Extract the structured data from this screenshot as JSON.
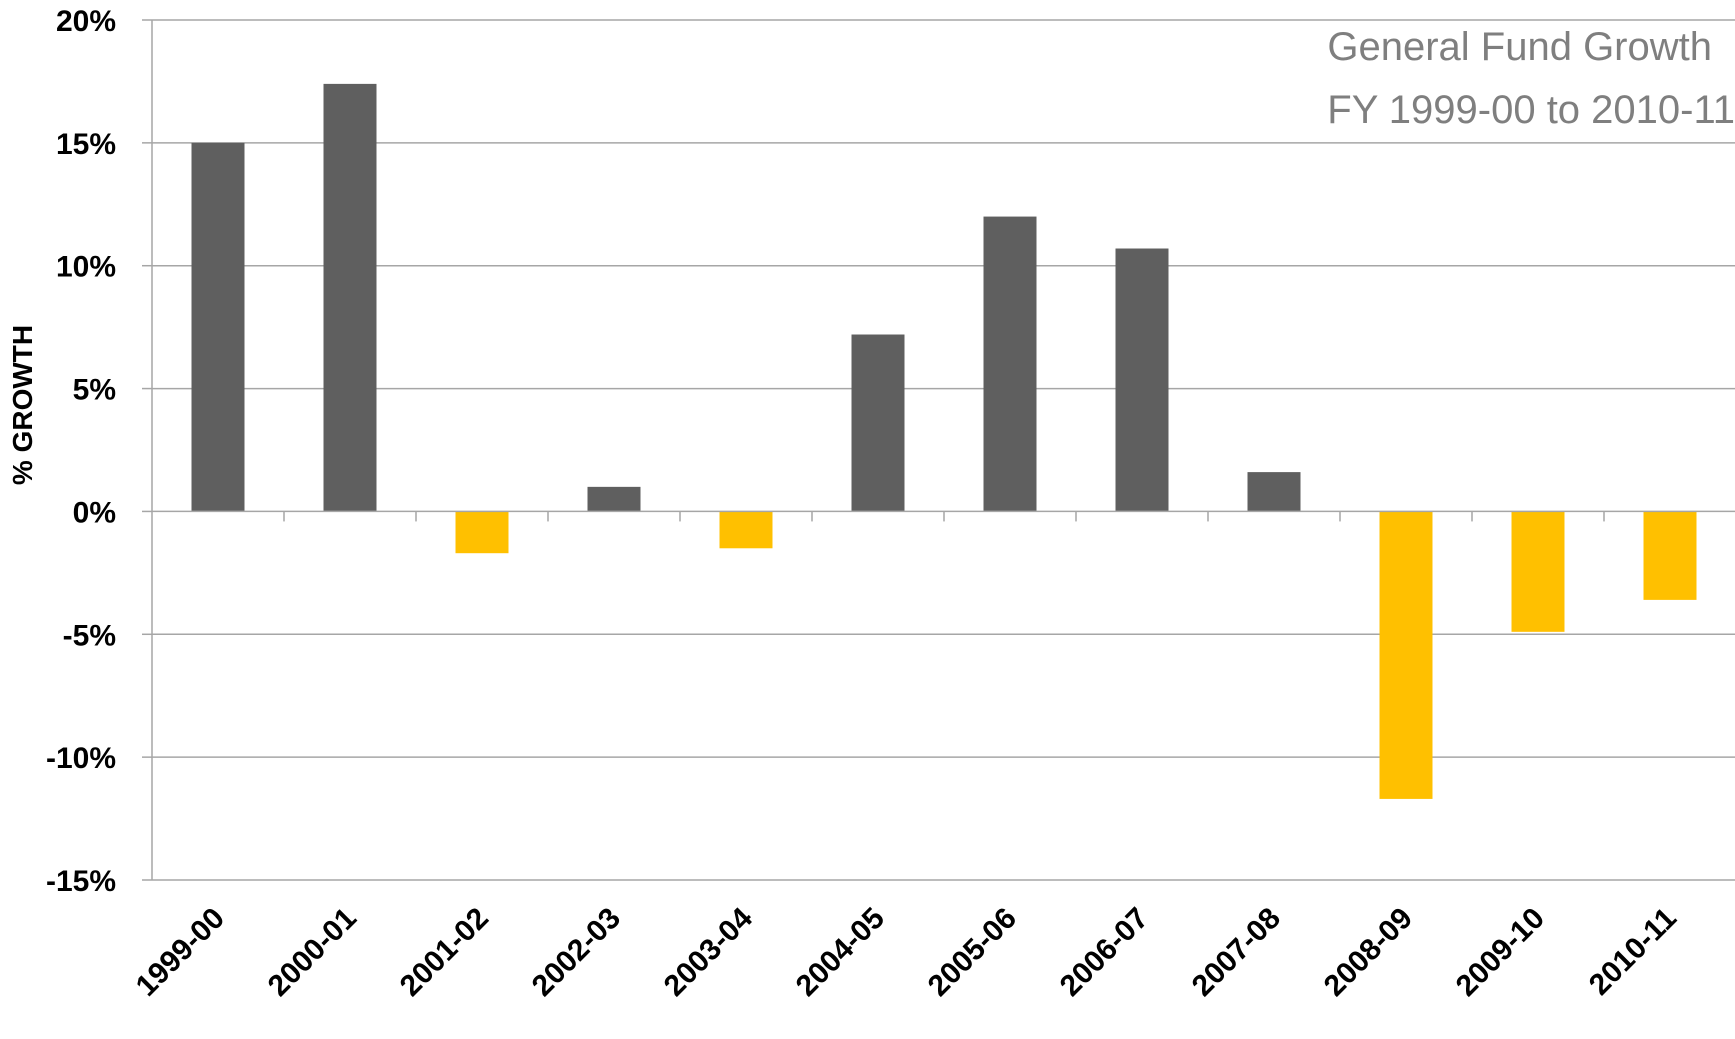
{
  "chart_data": {
    "type": "bar",
    "title": "General Fund Growth",
    "subtitle": "FY 1999-00 to 2010-11",
    "xlabel": "",
    "ylabel": "% GROWTH",
    "categories": [
      "1999-00",
      "2000-01",
      "2001-02",
      "2002-03",
      "2003-04",
      "2004-05",
      "2005-06",
      "2006-07",
      "2007-08",
      "2008-09",
      "2009-10",
      "2010-11"
    ],
    "values": [
      15.0,
      17.4,
      -1.7,
      1.0,
      -1.5,
      7.2,
      12.0,
      10.7,
      1.6,
      -11.7,
      -4.9,
      -3.6
    ],
    "ylim": [
      -15,
      20
    ],
    "yticks": [
      20,
      15,
      10,
      5,
      0,
      -5,
      -10,
      -15
    ],
    "ytick_labels": [
      "20%",
      "15%",
      "10%",
      "5%",
      "0%",
      "-5%",
      "-10%",
      "-15%"
    ],
    "grid": true,
    "legend": "none",
    "colors": {
      "positive": "#5f5f5f",
      "negative": "#ffc000",
      "grid": "#a6a6a6",
      "title": "#7f7f7f"
    }
  }
}
